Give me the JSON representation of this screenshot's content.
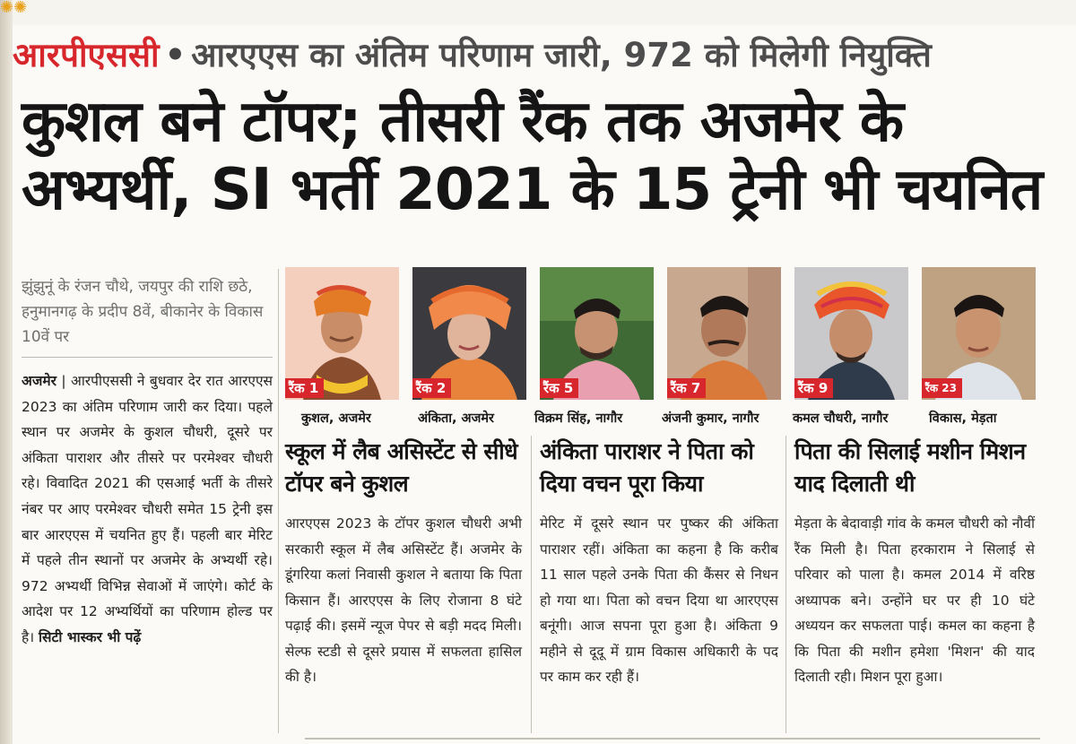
{
  "kicker": {
    "brand": "आरपीएससी",
    "dot": "•",
    "text": "आरएएस का अंतिम परिणाम जारी, 972 को  मिलेगी नियुक्ति"
  },
  "headline": {
    "line1": "कुशल बने टॉपर; तीसरी रैंक तक अजमेर के",
    "line2": "अभ्यर्थी, SI भर्ती 2021 के 15 ट्रेनी भी चयनित"
  },
  "deck": "झुंझुनूं के रंजन चौथे, जयपुर की राशि छठे, हनुमानगढ़ के प्रदीप 8वें, बीकानेर के विकास 10वें पर",
  "main_story": {
    "dateline": "अजमेर",
    "separator": " | ",
    "body": "आरपीएससी ने बुधवार देर रात आरएएस 2023 का अंतिम परिणाम जारी कर दिया। पहले स्थान पर अजमेर के कुशल चौधरी, दूसरे पर अंकिता पाराशर और तीसरे पर परमेश्वर चौधरी रहे। विवादित 2021 की एसआई भर्ती के तीसरे नंबर पर आए परमेश्वर चौधरी समेत 15 ट्रेनी इस बार आरएएस में चयनित हुए हैं। पहली बार मेरिट में पहले तीन स्थानों पर अजमेर के अभ्यर्थी रहे। 972 अभ्यर्थी विभिन्न सेवाओं में जाएंगे। कोर्ट के आदेश पर 12 अभ्यर्थियों का परिणाम होल्ड पर है।",
    "credit": "सिटी भास्कर भी पढ़ें"
  },
  "candidates": [
    {
      "rank": "रैंक 1",
      "name": "कुशल, अजमेर"
    },
    {
      "rank": "रैंक 2",
      "name": "अंकिता, अजमेर"
    },
    {
      "rank": "रैंक 5",
      "name": "विक्रम सिंह, नागौर"
    },
    {
      "rank": "रैंक 7",
      "name": "अंजनी कुमार, नागौर"
    },
    {
      "rank": "रैंक 9",
      "name": "कमल चौधरी, नागौर"
    },
    {
      "rank": "रैंक 23",
      "name": "विकास, मेड़ता"
    }
  ],
  "stories": [
    {
      "heading": "स्कूल में लैब असिस्टेंट से सीधे टॉपर बने कुशल",
      "body": "आरएएस 2023 के टॉपर कुशल चौधरी अभी सरकारी स्कूल में लैब असिस्टेंट हैं। अजमेर के डूंगरिया कलां निवासी कुशल ने बताया कि पिता किसान हैं। आरएएस के लिए रोजाना 8 घंटे पढ़ाई की। इसमें न्यूज पेपर से बड़ी मदद मिली। सेल्फ स्टडी से दूसरे प्रयास में सफलता हासिल की है।"
    },
    {
      "heading": "अंकिता पाराशर ने पिता को दिया वचन पूरा किया",
      "body": "मेरिट में दूसरे स्थान पर पुष्कर की अंकिता पाराशर रहीं। अंकिता का कहना है कि करीब 11 साल पहले उनके पिता की कैंसर से निधन हो गया था। पिता को वचन दिया था आरएएस बनूंगी। आज सपना पूरा हुआ है। अंकिता 9 महीने से दूदू में ग्राम विकास अधिकारी के पद पर काम कर रही हैं।"
    },
    {
      "heading": "पिता की सिलाई मशीन मिशन याद दिलाती थी",
      "body": "मेड़ता के बेदावाड़ी गांव के कमल चौधरी को नौवीं रैंक मिली है। पिता हरकाराम ने सिलाई से परिवार को पाला है। कमल 2014 में वरिष्ठ अध्यापक बने। उन्होंने घर पर ही 10 घंटे अध्ययन कर सफलता पाई। कमल का कहना है कि पिता की मशीन हमेशा 'मिशन' की याद दिलाती रही। मिशन पूरा हुआ।"
    }
  ],
  "colors": {
    "brand_red": "#d7262c",
    "ink": "#151515",
    "kicker_gray": "#4d4d4d",
    "deck_gray": "#6e6e6e"
  }
}
